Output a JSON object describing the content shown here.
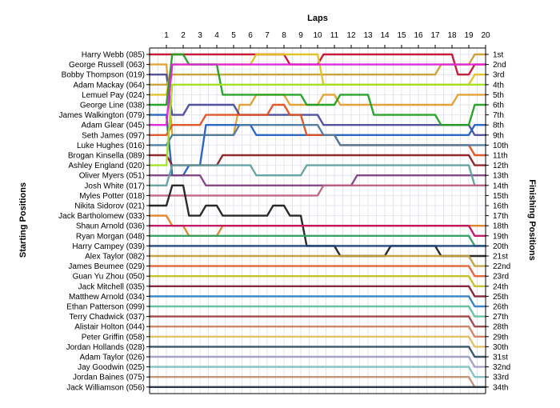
{
  "chart_data": {
    "type": "line",
    "title": "",
    "top_axis_title": "Laps",
    "left_axis_title": "Starting Positions",
    "right_axis_title": "Finishing Positions",
    "laps": [
      "1",
      "2",
      "3",
      "4",
      "5",
      "6",
      "7",
      "8",
      "9",
      "10",
      "11",
      "12",
      "13",
      "14",
      "15",
      "16",
      "17",
      "18",
      "19",
      "20"
    ],
    "positions": [
      "1st",
      "2nd",
      "3rd",
      "4th",
      "5th",
      "6th",
      "7th",
      "8th",
      "9th",
      "10th",
      "11th",
      "12th",
      "13th",
      "14th",
      "15th",
      "16th",
      "17th",
      "18th",
      "19th",
      "20th",
      "21st",
      "22nd",
      "23rd",
      "24th",
      "25th",
      "26th",
      "27th",
      "28th",
      "29th",
      "30th",
      "31st",
      "32nd",
      "33rd",
      "34th"
    ],
    "grid": true,
    "series": [
      {
        "name": "Harry Webb (085)",
        "color": "#c8102e",
        "values": [
          1,
          1,
          1,
          1,
          1,
          1,
          1,
          1,
          2,
          2,
          1,
          1,
          1,
          1,
          1,
          1,
          1,
          1,
          3,
          2
        ]
      },
      {
        "name": "George Russell (063)",
        "color": "#e0a030",
        "values": [
          2,
          9,
          9,
          9,
          9,
          6,
          5,
          5,
          6,
          6,
          5,
          6,
          6,
          6,
          6,
          6,
          6,
          6,
          5,
          5
        ]
      },
      {
        "name": "Bobby Thompson (019)",
        "color": "#4a4a9a",
        "values": [
          3,
          7,
          6,
          6,
          6,
          7,
          7,
          7,
          7,
          7,
          8,
          8,
          8,
          8,
          8,
          8,
          8,
          8,
          8,
          9
        ]
      },
      {
        "name": "Adam Mackay (064)",
        "color": "#c8a030",
        "values": [
          4,
          3,
          3,
          3,
          3,
          3,
          3,
          3,
          3,
          3,
          3,
          3,
          3,
          3,
          3,
          3,
          3,
          2,
          2,
          1
        ]
      },
      {
        "name": "Lemuel Pay (024)",
        "color": "#e0c020",
        "values": [
          5,
          2,
          2,
          2,
          2,
          2,
          1,
          1,
          1,
          1,
          4,
          4,
          4,
          4,
          4,
          4,
          4,
          4,
          4,
          3
        ]
      },
      {
        "name": "George Line (038)",
        "color": "#20a020",
        "values": [
          6,
          1,
          2,
          2,
          5,
          5,
          5,
          5,
          5,
          6,
          6,
          5,
          5,
          7,
          7,
          7,
          7,
          8,
          8,
          6
        ]
      },
      {
        "name": "James Walkington (079)",
        "color": "#2060c0",
        "values": [
          7,
          13,
          12,
          8,
          8,
          8,
          9,
          9,
          9,
          9,
          9,
          9,
          9,
          9,
          9,
          9,
          9,
          9,
          9,
          8
        ]
      },
      {
        "name": "Adam Glear (045)",
        "color": "#e020e0",
        "values": [
          8,
          2,
          2,
          2,
          2,
          2,
          2,
          2,
          2,
          2,
          2,
          2,
          2,
          2,
          2,
          2,
          2,
          2,
          2,
          2
        ]
      },
      {
        "name": "Seth James (097)",
        "color": "#e05020",
        "values": [
          9,
          8,
          8,
          7,
          7,
          7,
          7,
          6,
          7,
          9,
          9,
          10,
          10,
          10,
          10,
          10,
          10,
          10,
          10,
          11
        ]
      },
      {
        "name": "Luke Hughes (016)",
        "color": "#4a7aa0",
        "values": [
          10,
          9,
          9,
          9,
          9,
          8,
          8,
          8,
          8,
          8,
          9,
          10,
          10,
          10,
          10,
          10,
          10,
          10,
          10,
          10
        ]
      },
      {
        "name": "Brogan Kinsella (089)",
        "color": "#8a2020",
        "values": [
          11,
          12,
          12,
          12,
          11,
          11,
          11,
          11,
          11,
          11,
          11,
          11,
          11,
          11,
          11,
          11,
          11,
          11,
          11,
          12
        ]
      },
      {
        "name": "Ashley England (020)",
        "color": "#a0e020",
        "values": [
          12,
          4,
          4,
          4,
          4,
          4,
          4,
          4,
          4,
          4,
          4,
          4,
          4,
          4,
          4,
          4,
          4,
          4,
          4,
          4
        ]
      },
      {
        "name": "Oliver Myers (051)",
        "color": "#804080",
        "values": [
          13,
          13,
          13,
          14,
          14,
          14,
          14,
          14,
          14,
          14,
          14,
          14,
          13,
          13,
          13,
          13,
          13,
          13,
          13,
          13
        ]
      },
      {
        "name": "Josh White (017)",
        "color": "#60a0a0",
        "values": [
          14,
          12,
          12,
          12,
          12,
          12,
          13,
          13,
          13,
          12,
          12,
          12,
          12,
          12,
          12,
          12,
          12,
          12,
          12,
          14
        ]
      },
      {
        "name": "Myles Potter (018)",
        "color": "#c06080",
        "values": [
          15,
          15,
          15,
          15,
          15,
          15,
          15,
          15,
          15,
          15,
          14,
          14,
          14,
          14,
          14,
          14,
          14,
          14,
          14,
          14
        ]
      },
      {
        "name": "Nikita Sidorov (021)",
        "color": "#202020",
        "values": [
          16,
          14,
          17,
          16,
          17,
          17,
          17,
          16,
          17,
          20,
          20,
          21,
          21,
          21,
          20,
          20,
          20,
          21,
          21,
          21
        ]
      },
      {
        "name": "Jack Bartholomew (033)",
        "color": "#e08020",
        "values": [
          17,
          18,
          19,
          19,
          18,
          18,
          18,
          18,
          18,
          18,
          18,
          18,
          18,
          18,
          18,
          18,
          18,
          18,
          18,
          18
        ]
      },
      {
        "name": "Shaun Arnold (036)",
        "color": "#c01060",
        "values": [
          18,
          18,
          18,
          18,
          18,
          18,
          18,
          18,
          18,
          18,
          18,
          18,
          18,
          18,
          18,
          18,
          18,
          18,
          18,
          19
        ]
      },
      {
        "name": "Ryan Morgan (048)",
        "color": "#30a060",
        "values": [
          19,
          19,
          19,
          19,
          19,
          19,
          19,
          19,
          19,
          19,
          19,
          19,
          19,
          19,
          19,
          19,
          19,
          19,
          19,
          20
        ]
      },
      {
        "name": "Harry Campey (039)",
        "color": "#204080",
        "values": [
          20,
          20,
          20,
          20,
          20,
          20,
          20,
          20,
          20,
          20,
          20,
          20,
          20,
          20,
          20,
          20,
          20,
          20,
          20,
          20
        ]
      },
      {
        "name": "Alex Taylor (082)",
        "color": "#c0a040",
        "values": [
          21,
          21,
          21,
          21,
          21,
          21,
          21,
          21,
          21,
          21,
          21,
          21,
          21,
          21,
          21,
          21,
          21,
          21,
          21,
          22
        ]
      },
      {
        "name": "James Beumee (029)",
        "color": "#e06030",
        "values": [
          22,
          22,
          22,
          22,
          22,
          22,
          22,
          22,
          22,
          22,
          22,
          22,
          22,
          22,
          22,
          22,
          22,
          22,
          22,
          23
        ]
      },
      {
        "name": "Guan Yu Zhou (050)",
        "color": "#c0c020",
        "values": [
          23,
          23,
          23,
          23,
          23,
          23,
          23,
          23,
          23,
          23,
          23,
          23,
          23,
          23,
          23,
          23,
          23,
          23,
          23,
          24
        ]
      },
      {
        "name": "Jack Mitchell (035)",
        "color": "#802030",
        "values": [
          24,
          24,
          24,
          24,
          24,
          24,
          24,
          24,
          24,
          24,
          24,
          24,
          24,
          24,
          24,
          24,
          24,
          24,
          24,
          25
        ]
      },
      {
        "name": "Matthew Arnold (034)",
        "color": "#3080c0",
        "values": [
          25,
          25,
          25,
          25,
          25,
          25,
          25,
          25,
          25,
          25,
          25,
          25,
          25,
          25,
          25,
          25,
          25,
          25,
          25,
          26
        ]
      },
      {
        "name": "Ethan Patterson (099)",
        "color": "#60c0a0",
        "values": [
          26,
          26,
          26,
          26,
          26,
          26,
          26,
          26,
          26,
          26,
          26,
          26,
          26,
          26,
          26,
          26,
          26,
          26,
          26,
          27
        ]
      },
      {
        "name": "Terry Chadwick (037)",
        "color": "#a04040",
        "values": [
          27,
          27,
          27,
          27,
          27,
          27,
          27,
          27,
          27,
          27,
          27,
          27,
          27,
          27,
          27,
          27,
          27,
          27,
          27,
          28
        ]
      },
      {
        "name": "Alistair Holton (044)",
        "color": "#d08060",
        "values": [
          28,
          28,
          28,
          28,
          28,
          28,
          28,
          28,
          28,
          28,
          28,
          28,
          28,
          28,
          28,
          28,
          28,
          28,
          28,
          29
        ]
      },
      {
        "name": "Peter Griffin (058)",
        "color": "#e0c060",
        "values": [
          29,
          29,
          29,
          29,
          29,
          29,
          29,
          29,
          29,
          29,
          29,
          29,
          29,
          29,
          29,
          29,
          29,
          29,
          29,
          30
        ]
      },
      {
        "name": "Jordan Hollands (028)",
        "color": "#305060",
        "values": [
          30,
          30,
          30,
          30,
          30,
          30,
          30,
          30,
          30,
          30,
          30,
          30,
          30,
          30,
          30,
          30,
          30,
          30,
          30,
          31
        ]
      },
      {
        "name": "Adam Taylor (026)",
        "color": "#a0a0c0",
        "values": [
          31,
          31,
          31,
          31,
          31,
          31,
          31,
          31,
          31,
          31,
          31,
          31,
          31,
          31,
          31,
          31,
          31,
          31,
          31,
          32
        ]
      },
      {
        "name": "Jay Goodwin (025)",
        "color": "#80c0c0",
        "values": [
          32,
          32,
          32,
          32,
          32,
          32,
          32,
          32,
          32,
          32,
          32,
          32,
          32,
          32,
          32,
          32,
          32,
          32,
          32,
          33
        ]
      },
      {
        "name": "Jordan Baines (075)",
        "color": "#c09070",
        "values": [
          33,
          33,
          33,
          33,
          33,
          33,
          33,
          33,
          33,
          33,
          33,
          33,
          33,
          33,
          33,
          33,
          33,
          33,
          33,
          34
        ]
      },
      {
        "name": "Jack Williamson (056)",
        "color": "#203040",
        "values": [
          34,
          34,
          34,
          34,
          34,
          34,
          34,
          34,
          34,
          34,
          34,
          34,
          34,
          34,
          34,
          34,
          34,
          34,
          34,
          34
        ]
      }
    ]
  }
}
